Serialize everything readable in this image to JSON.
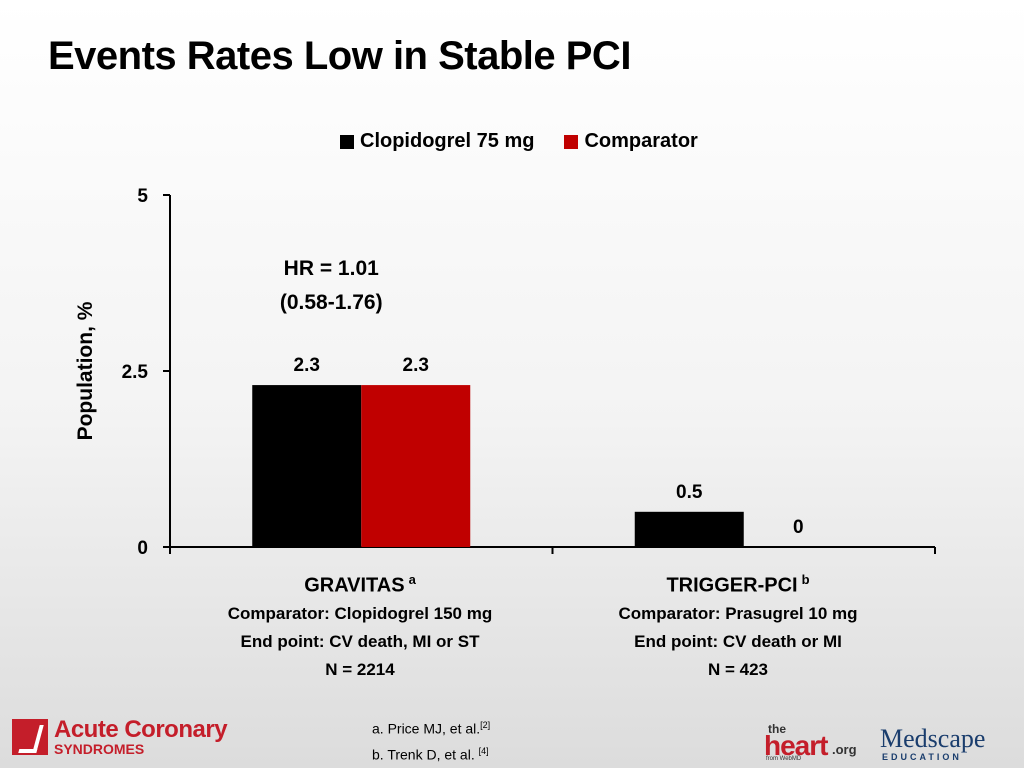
{
  "title": "Events Rates Low in Stable PCI",
  "chart_data": {
    "type": "bar",
    "categories": [
      "GRAVITAS",
      "TRIGGER-PCI"
    ],
    "category_superscripts": [
      "a",
      "b"
    ],
    "series": [
      {
        "name": "Clopidogrel 75 mg",
        "color": "#000000",
        "values": [
          2.3,
          0.5
        ],
        "labels": [
          "2.3",
          "0.5"
        ]
      },
      {
        "name": "Comparator",
        "color": "#c00000",
        "values": [
          2.3,
          0
        ],
        "labels": [
          "2.3",
          "0"
        ]
      }
    ],
    "ylabel": "Population,  %",
    "ylim": [
      0,
      5
    ],
    "yticks": [
      "0",
      "2.5",
      "5"
    ],
    "ytick_values": [
      0,
      2.5,
      5
    ],
    "grid": false,
    "legend_position": "top",
    "annotations": [
      {
        "text": "HR = 1.01"
      },
      {
        "text": "(0.58-1.76)"
      }
    ]
  },
  "groups": [
    {
      "name": "GRAVITAS",
      "sup": "a",
      "lines": [
        "Comparator: Clopidogrel 150 mg",
        "End point: CV death, MI  or ST",
        "N = 2214"
      ]
    },
    {
      "name": "TRIGGER-PCI",
      "sup": "b",
      "lines": [
        "Comparator: Prasugrel 10 mg",
        "End point: CV death or MI",
        "N = 423"
      ]
    }
  ],
  "footnotes": [
    {
      "text": "a. Price MJ, et al.",
      "ref": "[2]"
    },
    {
      "text": "b. Trenk D, et al. ",
      "ref": "[4]"
    }
  ],
  "logos": {
    "acs_line1": "Acute Coronary",
    "acs_line2": "SYNDROMES",
    "heart_the": "the",
    "heart_main": "heart",
    "heart_org": ".org",
    "heart_sub": "from WebMD",
    "medscape_main": "Medscape",
    "medscape_sub": "EDUCATION"
  }
}
